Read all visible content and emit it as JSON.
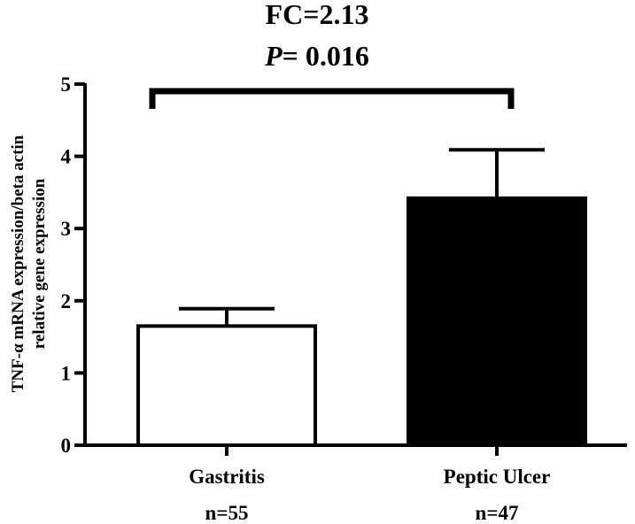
{
  "chart_data": {
    "type": "bar",
    "title_line1": "FC=2.13",
    "title_p_symbol": "P",
    "title_p_value": "= 0.016",
    "ylabel_line1": "TNF-α mRNA expression/beta actin",
    "ylabel_line2": "relative gene expression",
    "xlabel": "",
    "ylim": [
      0,
      5
    ],
    "yticks": [
      "0",
      "1",
      "2",
      "3",
      "4",
      "5"
    ],
    "categories": [
      "Gastritis",
      "Peptic Ulcer"
    ],
    "sample_sizes": [
      "n=55",
      "n=47"
    ],
    "values": [
      1.65,
      3.42
    ],
    "error_upper": [
      0.24,
      0.67
    ],
    "bar_fills": [
      "#ffffff",
      "#000000"
    ],
    "bar_stroke": "#000000",
    "grid": false,
    "legend": "none",
    "significance_bracket": true
  }
}
